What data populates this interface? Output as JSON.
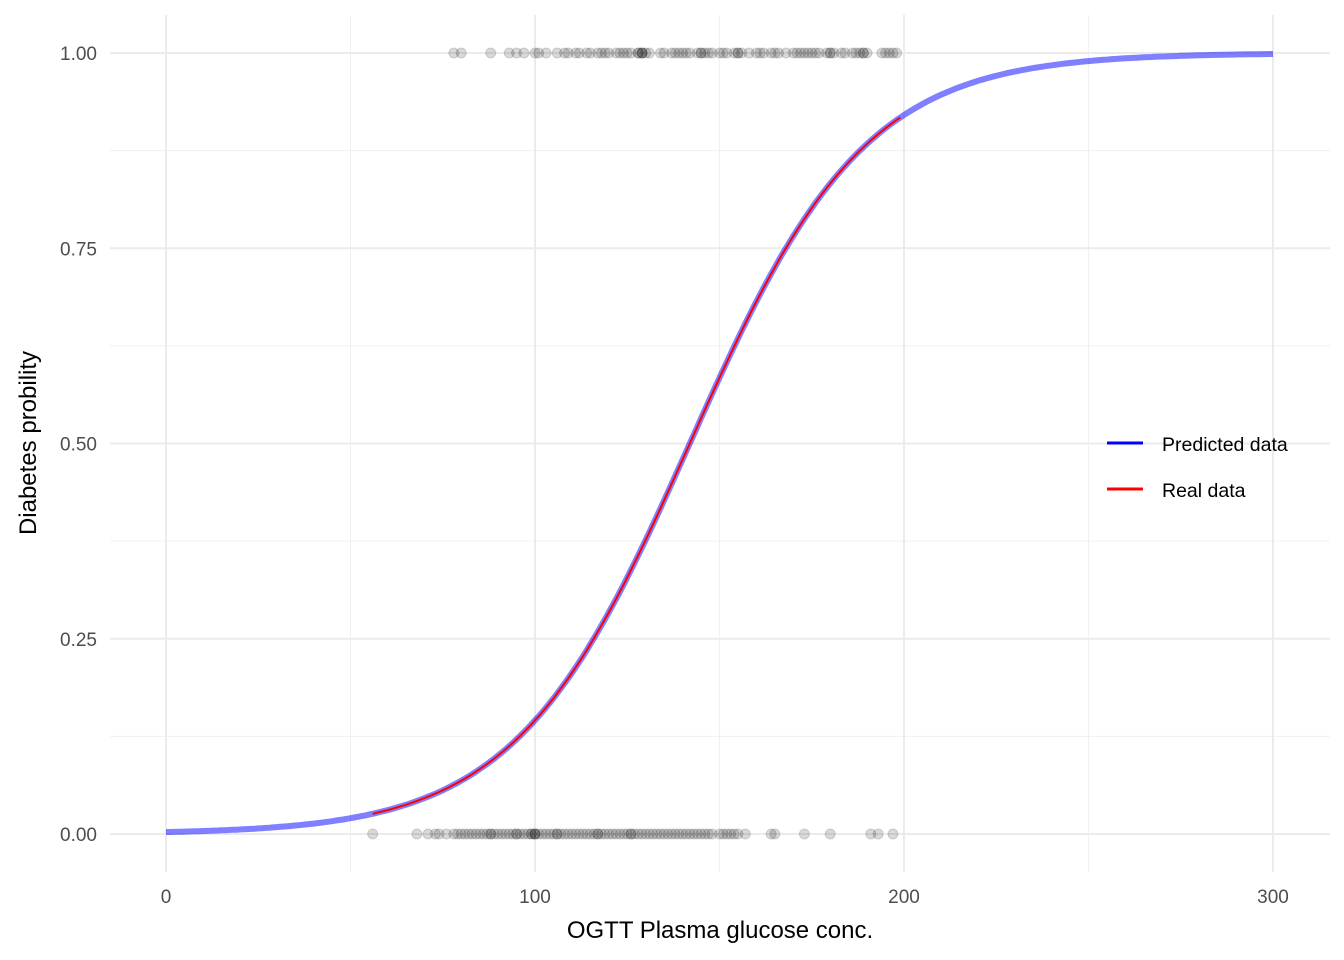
{
  "chart_data": {
    "type": "line",
    "title": "",
    "xlabel": "OGTT Plasma glucose conc.",
    "ylabel": "Diabetes probility",
    "xlim": [
      -15,
      315
    ],
    "ylim": [
      -0.05,
      1.05
    ],
    "xticks": [
      0,
      100,
      200,
      300
    ],
    "xtick_labels": [
      "0",
      "100",
      "200",
      "300"
    ],
    "yticks": [
      0,
      0.25,
      0.5,
      0.75,
      1
    ],
    "ytick_labels": [
      "0.00",
      "0.25",
      "0.50",
      "0.75",
      "1.00"
    ],
    "grid": true,
    "legend_position": "right",
    "logistic_model": {
      "intercept": -5.99,
      "slope": 0.0422
    },
    "series": [
      {
        "name": "Predicted data",
        "color": "#0000FF",
        "x_range": [
          0,
          300
        ]
      },
      {
        "name": "Real data",
        "color": "#FF0000",
        "x_range": [
          56,
          199
        ]
      }
    ],
    "points": {
      "outcome_1": [
        78,
        80,
        88,
        93,
        95,
        97,
        100,
        101,
        103,
        106,
        108,
        109,
        111,
        112,
        114,
        115,
        117,
        118,
        119,
        120,
        122,
        123,
        124,
        125,
        126,
        128,
        128,
        129,
        129,
        129,
        130,
        131,
        134,
        135,
        137,
        138,
        139,
        140,
        141,
        142,
        144,
        145,
        145,
        146,
        147,
        148,
        150,
        151,
        152,
        154,
        155,
        155,
        156,
        158,
        160,
        161,
        162,
        164,
        165,
        166,
        168,
        170,
        171,
        172,
        173,
        174,
        175,
        176,
        177,
        179,
        180,
        180,
        181,
        183,
        184,
        186,
        187,
        188,
        189,
        189,
        190,
        194,
        195,
        196,
        197,
        198
      ],
      "outcome_0": [
        56,
        68,
        71,
        73,
        74,
        76,
        78,
        79,
        80,
        81,
        82,
        83,
        84,
        85,
        86,
        87,
        88,
        88,
        89,
        90,
        91,
        92,
        93,
        94,
        95,
        95,
        96,
        97,
        98,
        99,
        99,
        100,
        100,
        100,
        101,
        102,
        103,
        104,
        105,
        106,
        106,
        107,
        108,
        109,
        110,
        111,
        112,
        113,
        114,
        115,
        116,
        117,
        117,
        118,
        119,
        120,
        121,
        122,
        123,
        124,
        125,
        126,
        126,
        127,
        128,
        129,
        130,
        131,
        132,
        133,
        134,
        135,
        136,
        137,
        138,
        139,
        140,
        141,
        142,
        143,
        144,
        145,
        146,
        147,
        148,
        150,
        151,
        152,
        153,
        154,
        155,
        157,
        164,
        165,
        173,
        180,
        191,
        193,
        197
      ]
    }
  }
}
